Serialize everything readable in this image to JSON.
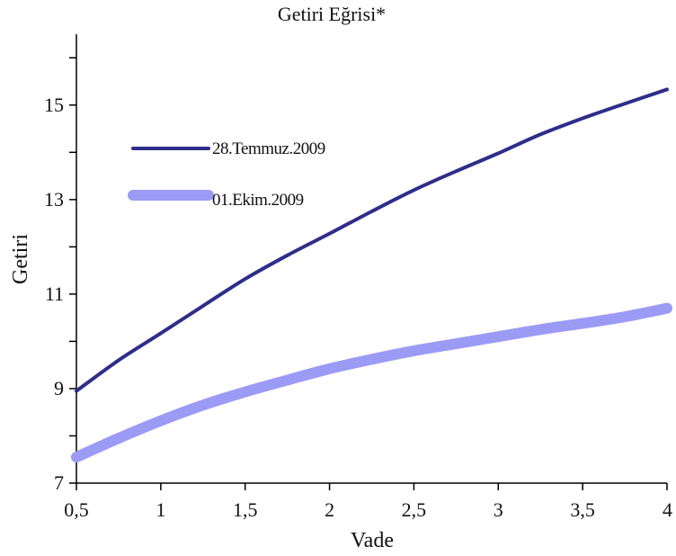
{
  "chart_data": {
    "type": "line",
    "title": "Getiri Eğrisi*",
    "xlabel": "Vade",
    "ylabel": "Getiri",
    "xlim": [
      0.5,
      4
    ],
    "ylim": [
      7,
      16.5
    ],
    "x_ticks": [
      0.5,
      1,
      1.5,
      2,
      2.5,
      3,
      3.5,
      4
    ],
    "x_tick_labels": [
      "0,5",
      "1",
      "1,5",
      "2",
      "2,5",
      "3",
      "3,5",
      "4"
    ],
    "y_ticks": [
      7,
      9,
      11,
      13,
      15
    ],
    "y_tick_labels": [
      "7",
      "9",
      "11",
      "13",
      "15"
    ],
    "grid": false,
    "legend_position": "top-left",
    "x": [
      0.5,
      0.75,
      1,
      1.25,
      1.5,
      1.75,
      2,
      2.25,
      2.5,
      2.75,
      3,
      3.25,
      3.5,
      3.75,
      4
    ],
    "series": [
      {
        "name": "28.Temmuz.2009",
        "color": "#2e2e8a",
        "values": [
          8.95,
          9.6,
          10.17,
          10.75,
          11.32,
          11.82,
          12.28,
          12.75,
          13.2,
          13.6,
          13.98,
          14.38,
          14.72,
          15.03,
          15.33
        ]
      },
      {
        "name": "01.Ekim.2009",
        "color": "#9b9bf5",
        "values": [
          7.55,
          7.95,
          8.32,
          8.65,
          8.93,
          9.18,
          9.42,
          9.62,
          9.8,
          9.95,
          10.1,
          10.25,
          10.38,
          10.52,
          10.7
        ]
      }
    ]
  }
}
